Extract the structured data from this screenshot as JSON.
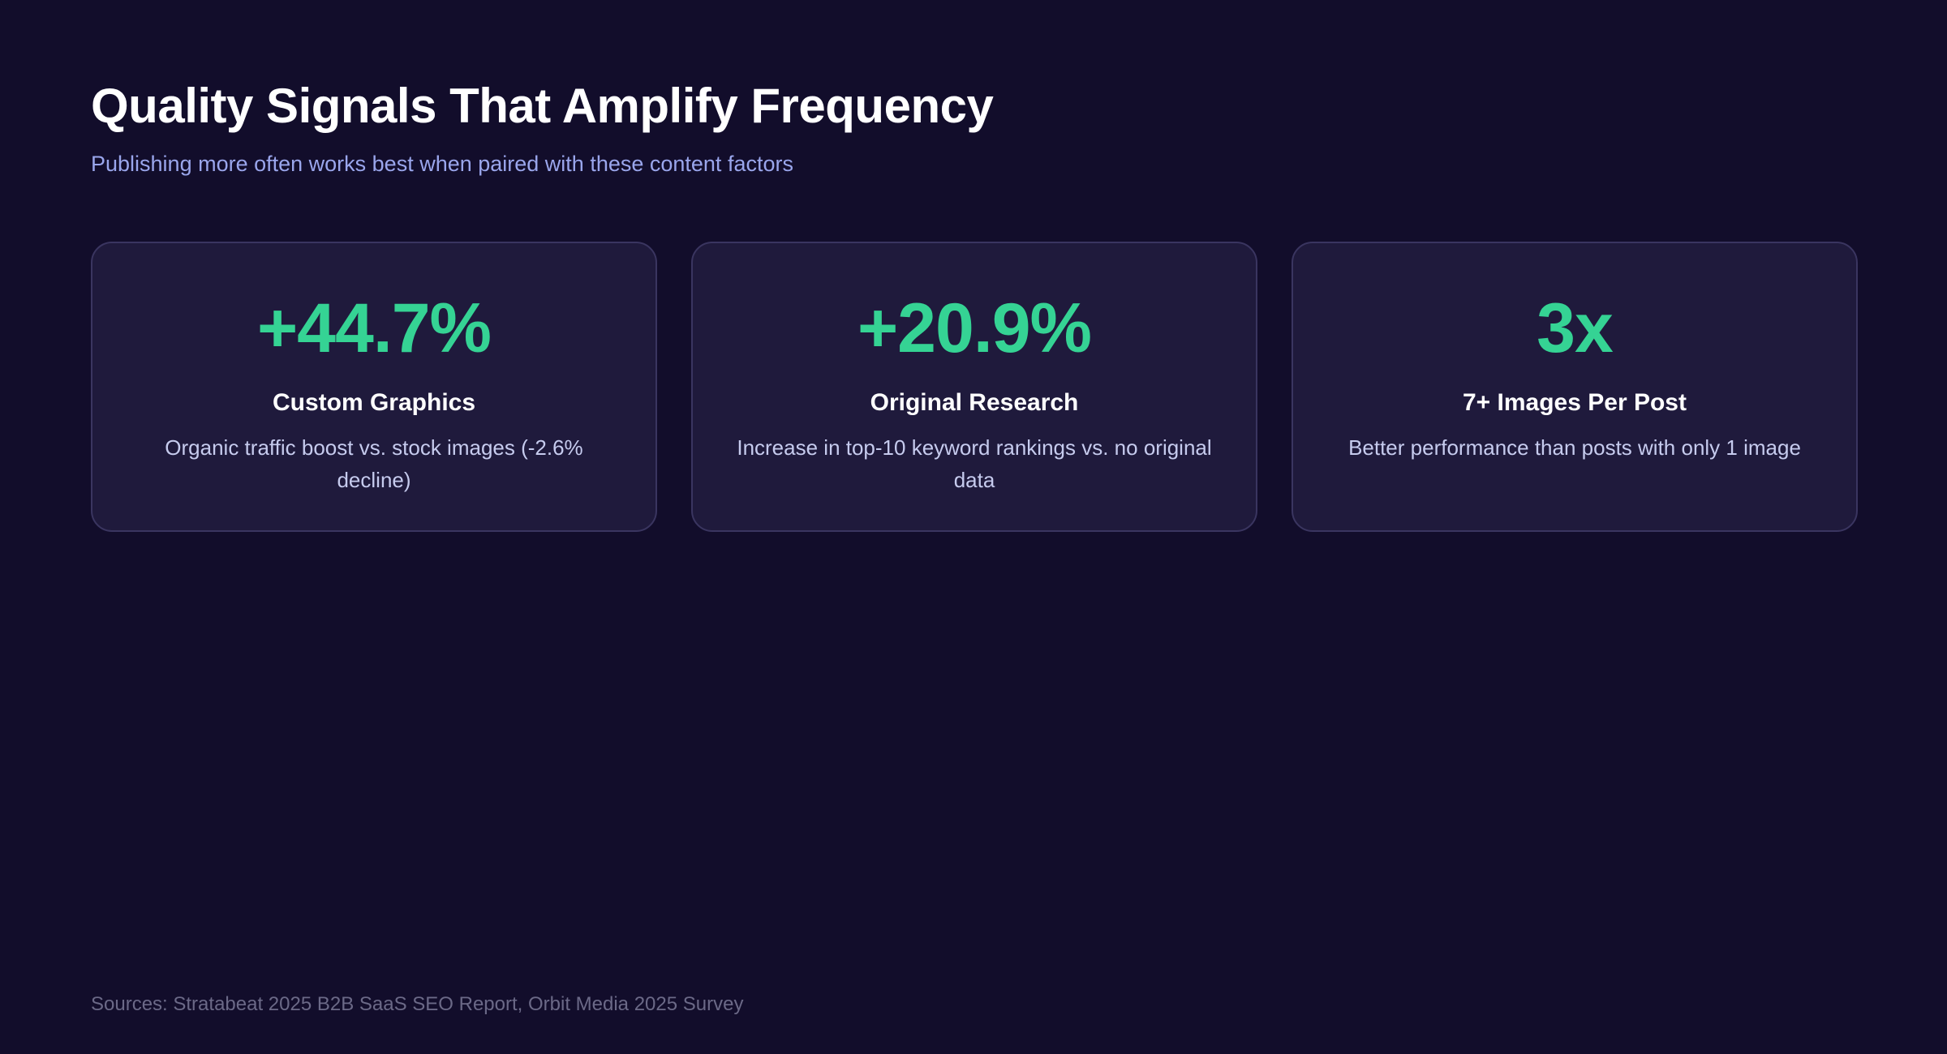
{
  "header": {
    "title": "Quality Signals That Amplify Frequency",
    "subtitle": "Publishing more often works best when paired with these content factors"
  },
  "cards": [
    {
      "value": "+44.7%",
      "label": "Custom Graphics",
      "description": "Organic traffic boost vs. stock images (-2.6% decline)"
    },
    {
      "value": "+20.9%",
      "label": "Original Research",
      "description": "Increase in top-10 keyword rankings vs. no original data"
    },
    {
      "value": "3x",
      "label": "7+ Images Per Post",
      "description": "Better performance than posts with only 1 image"
    }
  ],
  "footer": {
    "text": "Sources: Stratabeat 2025 B2B SaaS SEO Report, Orbit Media 2025 Survey"
  },
  "colors": {
    "background": "#120d2b",
    "card_background": "#1f1a3c",
    "card_border": "#3a3560",
    "accent_green": "#35d394",
    "title_text": "#ffffff",
    "subtitle_text": "#9aa6ec",
    "description_text": "#c6cbee",
    "footer_text": "#6b6987"
  }
}
